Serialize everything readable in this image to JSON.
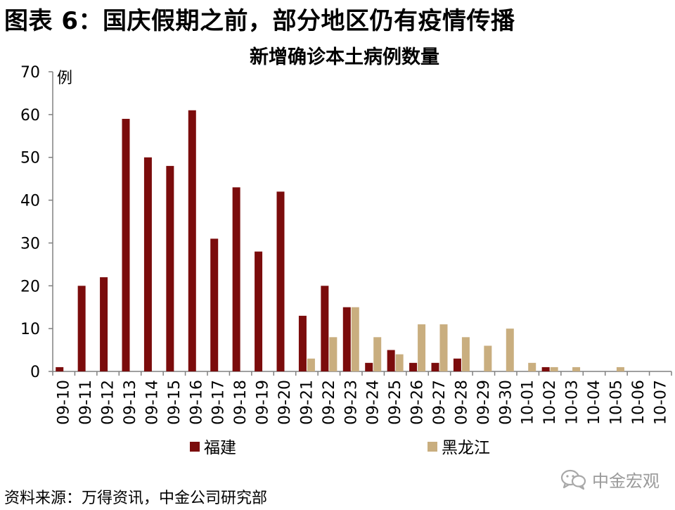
{
  "figure_title": "图表 6：国庆假期之前，部分地区仍有疫情传播",
  "source_note": "资料来源：万得资讯，中金公司研究部",
  "watermark": {
    "text": "中金宏观",
    "icon": "wechat-icon"
  },
  "colors": {
    "fujian": "#7B0C0C",
    "heilongjiang": "#C9AE7F",
    "axis": "#808080"
  },
  "chart_data": {
    "type": "bar",
    "title": "新增确诊本土病例数量",
    "ylabel": "例",
    "xlabel": "",
    "ylim": [
      0,
      70
    ],
    "yticks": [
      0,
      10,
      20,
      30,
      40,
      50,
      60,
      70
    ],
    "grid": false,
    "legend_position": "bottom",
    "categories": [
      "09-10",
      "09-11",
      "09-12",
      "09-13",
      "09-14",
      "09-15",
      "09-16",
      "09-17",
      "09-18",
      "09-19",
      "09-20",
      "09-21",
      "09-22",
      "09-23",
      "09-24",
      "09-25",
      "09-26",
      "09-27",
      "09-28",
      "09-29",
      "09-30",
      "10-01",
      "10-02",
      "10-03",
      "10-04",
      "10-05",
      "10-06",
      "10-07"
    ],
    "series": [
      {
        "name": "福建",
        "color": "#7B0C0C",
        "values": [
          1,
          20,
          22,
          59,
          50,
          48,
          61,
          31,
          43,
          28,
          42,
          13,
          20,
          15,
          2,
          5,
          2,
          2,
          3,
          0,
          0,
          0,
          1,
          0,
          0,
          0,
          0,
          0
        ]
      },
      {
        "name": "黑龙江",
        "color": "#C9AE7F",
        "values": [
          0,
          0,
          0,
          0,
          0,
          0,
          0,
          0,
          0,
          0,
          0,
          3,
          8,
          15,
          8,
          4,
          11,
          11,
          8,
          6,
          10,
          2,
          1,
          1,
          0,
          1,
          0,
          0
        ]
      }
    ]
  }
}
